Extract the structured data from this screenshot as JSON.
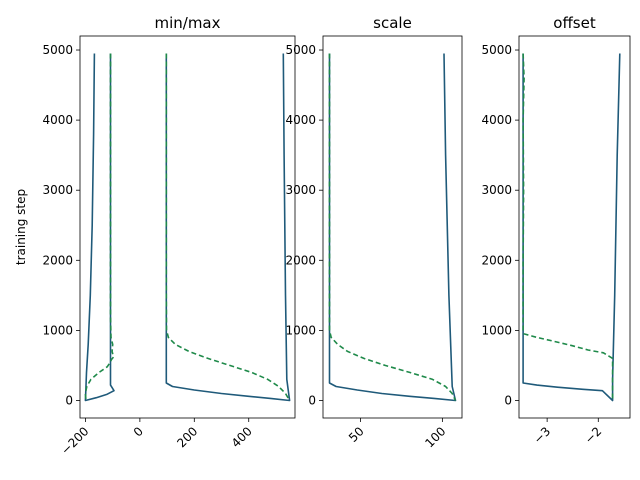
{
  "chart_data": [
    {
      "type": "line",
      "title": "min/max",
      "ylabel": "training step",
      "xlim": [
        -220,
        570
      ],
      "ylim": [
        -250,
        5200
      ],
      "xticks": [
        -200,
        0,
        200,
        400
      ],
      "xtick_labels": [
        "−200",
        "0",
        "200",
        "400"
      ],
      "yticks": [
        0,
        1000,
        2000,
        3000,
        4000,
        5000
      ],
      "ytick_labels": [
        "0",
        "1000",
        "2000",
        "3000",
        "4000",
        "5000"
      ],
      "grid": false,
      "series": [
        {
          "color": "#1f5a7a",
          "dash": "solid",
          "points": [
            [
              -167,
              4950
            ],
            [
              -170,
              3800
            ],
            [
              -175,
              2500
            ],
            [
              -182,
              1500
            ],
            [
              -190,
              800
            ],
            [
              -196,
              400
            ],
            [
              -199,
              100
            ],
            [
              -200,
              0
            ],
            [
              -160,
              40
            ],
            [
              -120,
              90
            ],
            [
              -95,
              140
            ],
            [
              -100,
              170
            ],
            [
              -108,
              220
            ],
            [
              -108,
              700
            ],
            [
              -108,
              2000
            ],
            [
              -108,
              4950
            ]
          ]
        },
        {
          "color": "#1f5a7a",
          "dash": "solid",
          "points": [
            [
              97,
              4950
            ],
            [
              97,
              3000
            ],
            [
              97,
              1500
            ],
            [
              97,
              600
            ],
            [
              97,
              250
            ],
            [
              120,
              200
            ],
            [
              200,
              150
            ],
            [
              300,
              100
            ],
            [
              400,
              60
            ],
            [
              480,
              30
            ],
            [
              550,
              0
            ],
            [
              540,
              300
            ],
            [
              535,
              1500
            ],
            [
              530,
              3500
            ],
            [
              527,
              4950
            ]
          ]
        },
        {
          "color": "#1f8a4a",
          "dash": "dashed",
          "points": [
            [
              -108,
              4950
            ],
            [
              -108,
              3000
            ],
            [
              -108,
              1200
            ],
            [
              -106,
              900
            ],
            [
              -100,
              800
            ],
            [
              -102,
              700
            ],
            [
              -97,
              620
            ],
            [
              -105,
              580
            ],
            [
              -108,
              550
            ],
            [
              -120,
              480
            ],
            [
              -150,
              400
            ],
            [
              -180,
              300
            ],
            [
              -195,
              200
            ],
            [
              -200,
              100
            ],
            [
              -198,
              0
            ]
          ]
        },
        {
          "color": "#1f8a4a",
          "dash": "dashed",
          "points": [
            [
              97,
              4950
            ],
            [
              97,
              3000
            ],
            [
              97,
              1500
            ],
            [
              98,
              1000
            ],
            [
              105,
              900
            ],
            [
              130,
              800
            ],
            [
              180,
              700
            ],
            [
              250,
              600
            ],
            [
              330,
              500
            ],
            [
              410,
              400
            ],
            [
              470,
              300
            ],
            [
              510,
              200
            ],
            [
              535,
              100
            ],
            [
              550,
              0
            ]
          ]
        }
      ]
    },
    {
      "type": "line",
      "title": "scale",
      "xlim": [
        27,
        112
      ],
      "ylim": [
        -250,
        5200
      ],
      "xticks": [
        50,
        100
      ],
      "xtick_labels": [
        "50",
        "100"
      ],
      "yticks": [
        0,
        1000,
        2000,
        3000,
        4000,
        5000
      ],
      "ytick_labels": [
        "0",
        "1000",
        "2000",
        "3000",
        "4000",
        "5000"
      ],
      "grid": false,
      "series": [
        {
          "color": "#1f5a7a",
          "dash": "solid",
          "points": [
            [
              31,
              4950
            ],
            [
              31,
              3000
            ],
            [
              31,
              1500
            ],
            [
              31,
              600
            ],
            [
              31,
              250
            ],
            [
              35,
              200
            ],
            [
              48,
              150
            ],
            [
              63,
              100
            ],
            [
              80,
              60
            ],
            [
              95,
              30
            ],
            [
              108,
              0
            ],
            [
              106,
              200
            ],
            [
              104,
              1500
            ],
            [
              102,
              3500
            ],
            [
              101,
              4950
            ]
          ]
        },
        {
          "color": "#1f8a4a",
          "dash": "dashed",
          "points": [
            [
              31,
              4950
            ],
            [
              31,
              3000
            ],
            [
              31,
              1500
            ],
            [
              31,
              1000
            ],
            [
              32,
              900
            ],
            [
              36,
              800
            ],
            [
              42,
              700
            ],
            [
              52,
              600
            ],
            [
              65,
              500
            ],
            [
              80,
              400
            ],
            [
              94,
              300
            ],
            [
              102,
              200
            ],
            [
              106,
              100
            ],
            [
              108,
              0
            ]
          ]
        }
      ]
    },
    {
      "type": "line",
      "title": "offset",
      "xlim": [
        -3.55,
        -1.38
      ],
      "ylim": [
        -250,
        5200
      ],
      "xticks": [
        -3,
        -2
      ],
      "xtick_labels": [
        "−3",
        "−2"
      ],
      "yticks": [
        0,
        1000,
        2000,
        3000,
        4000,
        5000
      ],
      "ytick_labels": [
        "0",
        "1000",
        "2000",
        "3000",
        "4000",
        "5000"
      ],
      "grid": false,
      "series": [
        {
          "color": "#1f5a7a",
          "dash": "solid",
          "points": [
            [
              -3.47,
              4950
            ],
            [
              -3.47,
              3000
            ],
            [
              -3.47,
              1500
            ],
            [
              -3.47,
              600
            ],
            [
              -3.47,
              250
            ],
            [
              -3.2,
              220
            ],
            [
              -2.8,
              190
            ],
            [
              -2.3,
              160
            ],
            [
              -1.92,
              140
            ],
            [
              -1.72,
              0
            ],
            [
              -1.72,
              300
            ],
            [
              -1.68,
              1500
            ],
            [
              -1.63,
              3500
            ],
            [
              -1.58,
              4950
            ]
          ]
        },
        {
          "color": "#1f8a4a",
          "dash": "dashed",
          "points": [
            [
              -3.47,
              4950
            ],
            [
              -3.45,
              4600
            ],
            [
              -3.47,
              4000
            ],
            [
              -3.46,
              3000
            ],
            [
              -3.47,
              2000
            ],
            [
              -3.47,
              1500
            ],
            [
              -3.47,
              1000
            ],
            [
              -3.45,
              950
            ],
            [
              -3.2,
              900
            ],
            [
              -2.9,
              850
            ],
            [
              -2.5,
              780
            ],
            [
              -2.2,
              720
            ],
            [
              -1.9,
              680
            ],
            [
              -1.72,
              600
            ],
            [
              -1.72,
              300
            ],
            [
              -1.72,
              0
            ]
          ]
        }
      ]
    }
  ]
}
